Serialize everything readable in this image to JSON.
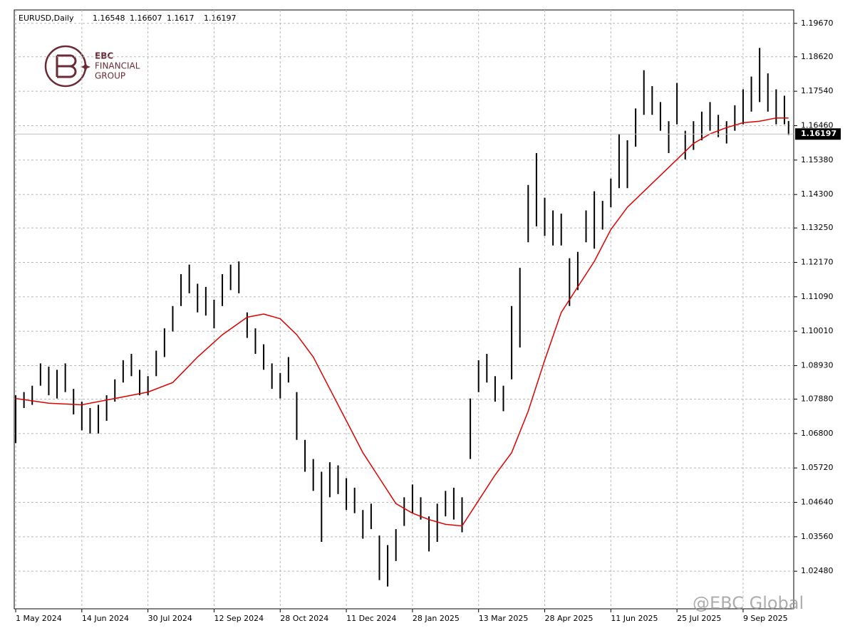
{
  "chart_data": {
    "type": "hlbar",
    "title": "EURUSD,Daily",
    "last_bar": {
      "open": 1.16548,
      "high": 1.16607,
      "low": 1.1617,
      "close": 1.16197
    },
    "current_price_label": "1.16197",
    "bar_color": "#000000",
    "grid": true,
    "xlim": [
      -0.7,
      376.5
    ],
    "xticks": [
      {
        "value": 0,
        "label": "1 May 2024"
      },
      {
        "value": 32,
        "label": "14 Jun 2024"
      },
      {
        "value": 64,
        "label": "30 Jul 2024"
      },
      {
        "value": 96,
        "label": "12 Sep 2024"
      },
      {
        "value": 128,
        "label": "28 Oct 2024"
      },
      {
        "value": 160,
        "label": "11 Dec 2024"
      },
      {
        "value": 192,
        "label": "28 Jan 2025"
      },
      {
        "value": 224,
        "label": "13 Mar 2025"
      },
      {
        "value": 256,
        "label": "28 Apr 2025"
      },
      {
        "value": 288,
        "label": "11 Jun 2025"
      },
      {
        "value": 320,
        "label": "25 Jul 2025"
      },
      {
        "value": 352,
        "label": "9 Sep 2025"
      }
    ],
    "ylim": [
      1.013,
      1.2009
    ],
    "yticks": [
      {
        "value": 1.0248,
        "label": "1.02480"
      },
      {
        "value": 1.0356,
        "label": "1.03560"
      },
      {
        "value": 1.0464,
        "label": "1.04640"
      },
      {
        "value": 1.0572,
        "label": "1.05720"
      },
      {
        "value": 1.068,
        "label": "1.06800"
      },
      {
        "value": 1.0788,
        "label": "1.07880"
      },
      {
        "value": 1.0893,
        "label": "1.08930"
      },
      {
        "value": 1.1001,
        "label": "1.10010"
      },
      {
        "value": 1.1109,
        "label": "1.11090"
      },
      {
        "value": 1.1217,
        "label": "1.12170"
      },
      {
        "value": 1.1325,
        "label": "1.13250"
      },
      {
        "value": 1.143,
        "label": "1.14300"
      },
      {
        "value": 1.1538,
        "label": "1.15380"
      },
      {
        "value": 1.1646,
        "label": "1.16460"
      },
      {
        "value": 1.1754,
        "label": "1.17540"
      },
      {
        "value": 1.1862,
        "label": "1.18620"
      },
      {
        "value": 1.1967,
        "label": "1.19670"
      }
    ],
    "bars": {
      "x": [
        0,
        4,
        8,
        12,
        16,
        20,
        24,
        28,
        32,
        36,
        40,
        44,
        48,
        52,
        56,
        60,
        64,
        68,
        72,
        76,
        80,
        84,
        88,
        92,
        96,
        100,
        104,
        108,
        112,
        116,
        120,
        124,
        128,
        132,
        136,
        140,
        144,
        148,
        152,
        156,
        160,
        164,
        168,
        172,
        176,
        180,
        184,
        188,
        192,
        196,
        200,
        204,
        208,
        212,
        216,
        220,
        224,
        228,
        232,
        236,
        240,
        244,
        248,
        252,
        256,
        260,
        264,
        268,
        272,
        276,
        280,
        284,
        288,
        292,
        296,
        300,
        304,
        308,
        312,
        316,
        320,
        324,
        328,
        332,
        336,
        340,
        344,
        348,
        352,
        356,
        360,
        364,
        368,
        372,
        374
      ],
      "high": [
        1.08,
        1.081,
        1.083,
        1.09,
        1.089,
        1.088,
        1.09,
        1.082,
        1.078,
        1.076,
        1.077,
        1.08,
        1.085,
        1.091,
        1.093,
        1.088,
        1.086,
        1.094,
        1.101,
        1.108,
        1.118,
        1.121,
        1.115,
        1.114,
        1.11,
        1.118,
        1.121,
        1.122,
        1.106,
        1.101,
        1.096,
        1.09,
        1.087,
        1.092,
        1.081,
        1.066,
        1.06,
        1.056,
        1.059,
        1.058,
        1.054,
        1.051,
        1.044,
        1.046,
        1.036,
        1.033,
        1.038,
        1.048,
        1.052,
        1.048,
        1.042,
        1.046,
        1.05,
        1.051,
        1.048,
        1.079,
        1.091,
        1.093,
        1.086,
        1.083,
        1.108,
        1.12,
        1.146,
        1.156,
        1.142,
        1.138,
        1.137,
        1.123,
        1.125,
        1.138,
        1.144,
        1.141,
        1.148,
        1.162,
        1.16,
        1.17,
        1.182,
        1.177,
        1.172,
        1.166,
        1.178,
        1.163,
        1.166,
        1.169,
        1.172,
        1.168,
        1.166,
        1.171,
        1.176,
        1.18,
        1.189,
        1.181,
        1.176,
        1.174,
        1.16607
      ],
      "low": [
        1.065,
        1.076,
        1.077,
        1.083,
        1.08,
        1.079,
        1.081,
        1.074,
        1.069,
        1.068,
        1.068,
        1.072,
        1.078,
        1.084,
        1.086,
        1.08,
        1.08,
        1.086,
        1.092,
        1.1,
        1.108,
        1.112,
        1.106,
        1.105,
        1.101,
        1.108,
        1.113,
        1.112,
        1.098,
        1.093,
        1.088,
        1.082,
        1.079,
        1.084,
        1.066,
        1.056,
        1.05,
        1.034,
        1.048,
        1.049,
        1.044,
        1.043,
        1.035,
        1.038,
        1.022,
        1.02,
        1.028,
        1.039,
        1.043,
        1.041,
        1.031,
        1.034,
        1.042,
        1.041,
        1.037,
        1.06,
        1.081,
        1.084,
        1.078,
        1.075,
        1.085,
        1.095,
        1.128,
        1.133,
        1.13,
        1.127,
        1.127,
        1.108,
        1.113,
        1.128,
        1.126,
        1.132,
        1.139,
        1.145,
        1.145,
        1.158,
        1.168,
        1.168,
        1.163,
        1.156,
        1.165,
        1.154,
        1.157,
        1.16,
        1.163,
        1.161,
        1.159,
        1.163,
        1.165,
        1.169,
        1.172,
        1.169,
        1.165,
        1.165,
        1.1617
      ]
    },
    "ma": {
      "color": "#e00000",
      "x": [
        0,
        16,
        32,
        48,
        64,
        76,
        88,
        100,
        112,
        120,
        128,
        136,
        144,
        152,
        160,
        168,
        176,
        184,
        192,
        200,
        208,
        216,
        224,
        232,
        240,
        248,
        256,
        264,
        272,
        280,
        288,
        296,
        304,
        312,
        320,
        328,
        336,
        344,
        352,
        360,
        368,
        374
      ],
      "values": [
        1.079,
        1.0775,
        1.077,
        1.079,
        1.081,
        1.084,
        1.092,
        1.099,
        1.1045,
        1.1055,
        1.104,
        1.099,
        1.092,
        1.082,
        1.072,
        1.062,
        1.054,
        1.046,
        1.043,
        1.041,
        1.0395,
        1.039,
        1.047,
        1.055,
        1.062,
        1.075,
        1.091,
        1.106,
        1.114,
        1.122,
        1.132,
        1.139,
        1.144,
        1.149,
        1.154,
        1.159,
        1.162,
        1.164,
        1.1655,
        1.166,
        1.167,
        1.167
      ]
    }
  },
  "logo": {
    "line1": "EBC",
    "line2": "FINANCIAL",
    "line3": "GROUP"
  },
  "watermark": "@EBC Global"
}
